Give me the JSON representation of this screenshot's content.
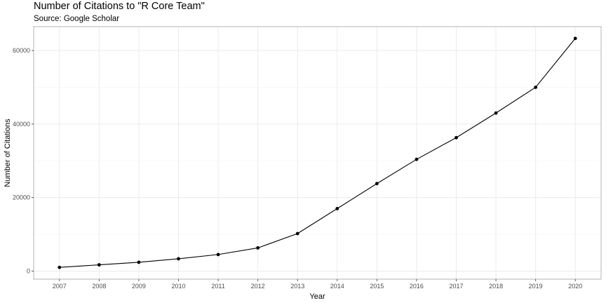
{
  "chart_data": {
    "type": "line",
    "title": "Number of Citations to \"R Core Team\"",
    "subtitle": "Source: Google Scholar",
    "xlabel": "Year",
    "ylabel": "Number of Citations",
    "x": [
      2007,
      2008,
      2009,
      2010,
      2011,
      2012,
      2013,
      2014,
      2015,
      2016,
      2017,
      2018,
      2019,
      2020
    ],
    "series": [
      {
        "values": [
          1000,
          1700,
          2400,
          3350,
          4500,
          6300,
          10200,
          17000,
          23800,
          30400,
          36300,
          43000,
          50000,
          63300
        ]
      }
    ],
    "xlim": [
      2006.35,
      2020.65
    ],
    "ylim": [
      -2200,
      66500
    ],
    "y_ticks": [
      0,
      20000,
      40000,
      60000
    ],
    "x_tick_labels": [
      "2007",
      "2008",
      "2009",
      "2010",
      "2011",
      "2012",
      "2013",
      "2014",
      "2015",
      "2016",
      "2017",
      "2018",
      "2019",
      "2020"
    ],
    "y_tick_labels": [
      "0",
      "20000",
      "40000",
      "60000"
    ],
    "grid": true,
    "colors": {
      "line": "#000000",
      "point": "#000000",
      "grid_major": "#ebebeb",
      "grid_minor": "#f5f5f5",
      "panel_border": "#b3b3b3"
    }
  }
}
